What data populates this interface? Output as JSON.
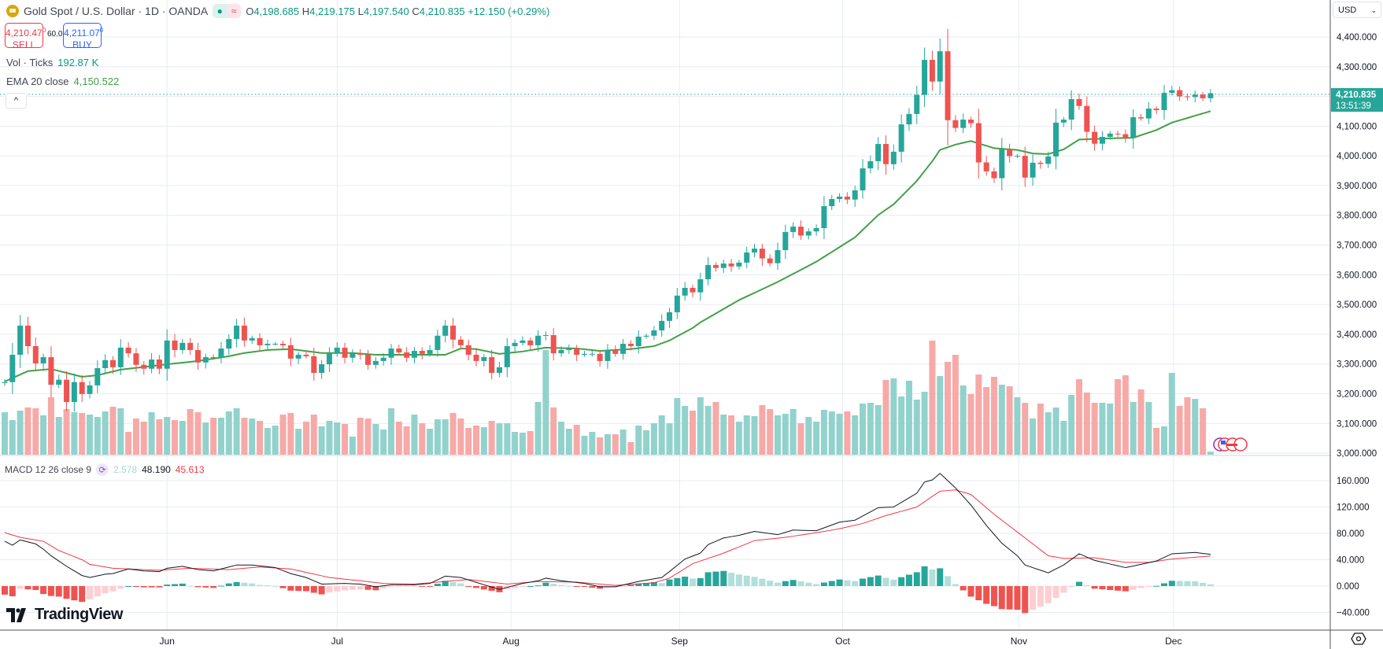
{
  "header": {
    "symbol_title": "Gold Spot / U.S. Dollar · 1D · OANDA",
    "ohlc": {
      "o_label": "O",
      "o": "4,198.685",
      "h_label": "H",
      "h": "4,219.175",
      "l_label": "L",
      "l": "4,197.540",
      "c_label": "C",
      "c": "4,210.835",
      "change": "+12.150 (+0.29%)"
    },
    "market_status_icon": "market-open-dot",
    "delay_icon": "approx-icon"
  },
  "trade": {
    "sell_price": "4,210.47",
    "sell_sup": "0",
    "sell_label": "SELL",
    "spread": "60.0",
    "buy_price": "4,211.07",
    "buy_sup": "0",
    "buy_label": "BUY"
  },
  "indicators": {
    "vol_label": "Vol · Ticks",
    "vol_value": "192.87 K",
    "ema_label": "EMA 20 close",
    "ema_value": "4,150.522",
    "collapse_icon": "chevron-up",
    "macd_label": "MACD 12 26 close 9",
    "macd_hist": "2.578",
    "macd_value": "48.190",
    "macd_signal": "45.613"
  },
  "right_axis": {
    "currency": "USD",
    "current_price": "4,210.835",
    "countdown": "13:51:39"
  },
  "branding": {
    "logo_text": "TradingView"
  },
  "colors": {
    "up": "#26a69a",
    "down": "#ef5350",
    "vol_up": "#92d2cc",
    "vol_down": "#f7a9a7",
    "ema": "#43a047",
    "macd": "#131722",
    "signal": "#f23645",
    "hist_up_strong": "#26a69a",
    "hist_up_weak": "#b2dfdb",
    "hist_down_strong": "#ef5350",
    "hist_down_weak": "#ffcdd2",
    "grid": "#e6ecf2"
  },
  "chart_data": {
    "type": "candlestick",
    "title": "Gold Spot / U.S. Dollar · 1D · OANDA",
    "price_ticks": [
      "4,400.000",
      "4,300.000",
      "4,100.000",
      "4,000.000",
      "3,900.000",
      "3,800.000",
      "3,700.000",
      "3,600.000",
      "3,500.000",
      "3,400.000",
      "3,300.000",
      "3,200.000",
      "3,100.000",
      "3,000.000"
    ],
    "price_tick_values": [
      4400,
      4300,
      4100,
      4000,
      3900,
      3800,
      3700,
      3600,
      3500,
      3400,
      3300,
      3200,
      3100,
      3000
    ],
    "ylim": [
      3000,
      4400
    ],
    "x_labels": [
      {
        "label": "Jun",
        "bar": 22
      },
      {
        "label": "Jul",
        "bar": 44
      },
      {
        "label": "Aug",
        "bar": 66.5
      },
      {
        "label": "Sep",
        "bar": 88.3
      },
      {
        "label": "Oct",
        "bar": 109.4
      },
      {
        "label": "Nov",
        "bar": 132.2
      },
      {
        "label": "Dec",
        "bar": 152.2
      }
    ],
    "first_open": 3236,
    "close": [
      3239,
      3331,
      3429,
      3360,
      3302,
      3323,
      3230,
      3247,
      3172,
      3239,
      3199,
      3228,
      3286,
      3313,
      3289,
      3355,
      3336,
      3297,
      3284,
      3315,
      3284,
      3379,
      3347,
      3371,
      3347,
      3305,
      3323,
      3321,
      3352,
      3384,
      3429,
      3379,
      3387,
      3363,
      3368,
      3368,
      3363,
      3318,
      3331,
      3326,
      3270,
      3299,
      3336,
      3355,
      3321,
      3336,
      3331,
      3297,
      3310,
      3321,
      3352,
      3339,
      3321,
      3344,
      3334,
      3347,
      3395,
      3429,
      3382,
      3363,
      3331,
      3310,
      3323,
      3270,
      3289,
      3360,
      3371,
      3379,
      3363,
      3395,
      3397,
      3336,
      3347,
      3352,
      3331,
      3334,
      3334,
      3310,
      3347,
      3334,
      3368,
      3360,
      3392,
      3395,
      3413,
      3445,
      3474,
      3530,
      3556,
      3541,
      3585,
      3633,
      3623,
      3638,
      3628,
      3641,
      3675,
      3688,
      3655,
      3639,
      3683,
      3744,
      3762,
      3732,
      3746,
      3757,
      3831,
      3855,
      3863,
      3853,
      3884,
      3958,
      3982,
      4040,
      3972,
      4014,
      4106,
      4141,
      4205,
      4323,
      4250,
      4352,
      4120,
      4094,
      4122,
      4110,
      3978,
      3948,
      3925,
      4022,
      3999,
      4000,
      3927,
      3977,
      3973,
      3998,
      4112,
      4122,
      4191,
      4168,
      4081,
      4041,
      4064,
      4075,
      4073,
      4060,
      4130,
      4126,
      4159,
      4154,
      4212,
      4221,
      4200,
      4198,
      4206,
      4194,
      4210.835
    ],
    "volume_k": [
      2700,
      2200,
      2800,
      3000,
      2950,
      2500,
      3650,
      2400,
      2900,
      2700,
      2650,
      2550,
      2400,
      2750,
      3050,
      2950,
      1450,
      2300,
      2100,
      2700,
      2250,
      2400,
      2200,
      2150,
      2900,
      2700,
      2050,
      2350,
      2350,
      2750,
      2950,
      2350,
      2300,
      2150,
      1700,
      1850,
      2550,
      2650,
      1650,
      2100,
      2550,
      1800,
      2150,
      2050,
      1950,
      1150,
      2350,
      2300,
      1950,
      1600,
      2950,
      2100,
      1800,
      2550,
      2000,
      1650,
      2250,
      2250,
      2650,
      2300,
      1700,
      1850,
      1750,
      2150,
      2000,
      2000,
      1450,
      1400,
      1500,
      3350,
      6650,
      3000,
      2100,
      1650,
      1900,
      1200,
      1450,
      1100,
      1300,
      1300,
      1600,
      800,
      1850,
      1550,
      2000,
      2500,
      2000,
      3600,
      3100,
      2800,
      3650,
      3100,
      3350,
      2550,
      2500,
      2100,
      2500,
      2450,
      3150,
      2900,
      2500,
      2600,
      2900,
      2000,
      2400,
      2100,
      2850,
      2750,
      2600,
      2750,
      2500,
      3250,
      3300,
      3150,
      4750,
      4850,
      3700,
      4700,
      3500,
      4000,
      7250,
      5000,
      5900,
      6350,
      4400,
      3850,
      5100,
      4300,
      4950,
      4450,
      4350,
      3650,
      3300,
      2300,
      3250,
      2700,
      3000,
      2150,
      3800,
      4800,
      3950,
      3300,
      3300,
      3250,
      4800,
      5050,
      3350,
      4150,
      3350,
      1700,
      1800,
      5200,
      3100,
      3650,
      3550,
      2950,
      192.87
    ],
    "ema20_samples": [
      [
        1,
        3241
      ],
      [
        4,
        3276
      ],
      [
        7,
        3283
      ],
      [
        11,
        3257
      ],
      [
        13,
        3262
      ],
      [
        16,
        3281
      ],
      [
        22,
        3299
      ],
      [
        26,
        3310
      ],
      [
        30,
        3326
      ],
      [
        32,
        3337
      ],
      [
        35,
        3347
      ],
      [
        38,
        3350
      ],
      [
        42,
        3337
      ],
      [
        46,
        3337
      ],
      [
        49,
        3331
      ],
      [
        58,
        3331
      ],
      [
        60,
        3352
      ],
      [
        62,
        3350
      ],
      [
        65,
        3334
      ],
      [
        68,
        3342
      ],
      [
        71,
        3355
      ],
      [
        75,
        3352
      ],
      [
        78,
        3344
      ],
      [
        82,
        3350
      ],
      [
        85,
        3360
      ],
      [
        87,
        3379
      ],
      [
        90,
        3421
      ],
      [
        91,
        3440
      ],
      [
        96,
        3515
      ],
      [
        101,
        3576
      ],
      [
        106,
        3644
      ],
      [
        111,
        3726
      ],
      [
        114,
        3801
      ],
      [
        116,
        3837
      ],
      [
        119,
        3916
      ],
      [
        121,
        3982
      ],
      [
        122,
        4020
      ],
      [
        124,
        4038
      ],
      [
        126,
        4050
      ],
      [
        129,
        4026
      ],
      [
        132,
        4020
      ],
      [
        134,
        4008
      ],
      [
        136,
        4006
      ],
      [
        138,
        4022
      ],
      [
        140,
        4055
      ],
      [
        144,
        4059
      ],
      [
        147,
        4061
      ],
      [
        150,
        4087
      ],
      [
        152,
        4112
      ],
      [
        157,
        4150.522
      ]
    ],
    "macd": {
      "ticks": [
        "160.000",
        "120.000",
        "80.000",
        "40.000",
        "0.000",
        "−40.000"
      ],
      "tick_values": [
        160,
        120,
        80,
        40,
        0,
        -40
      ],
      "line_samples": [
        [
          1,
          68
        ],
        [
          2,
          62
        ],
        [
          3,
          70
        ],
        [
          5,
          64
        ],
        [
          6,
          56
        ],
        [
          7,
          46
        ],
        [
          9,
          30
        ],
        [
          11,
          16
        ],
        [
          12,
          13
        ],
        [
          14,
          18
        ],
        [
          15,
          19
        ],
        [
          17,
          26
        ],
        [
          19,
          23
        ],
        [
          21,
          22
        ],
        [
          22,
          27
        ],
        [
          24,
          30
        ],
        [
          26,
          25
        ],
        [
          28,
          23
        ],
        [
          31,
          32
        ],
        [
          33,
          32
        ],
        [
          36,
          28
        ],
        [
          38,
          19
        ],
        [
          40,
          13
        ],
        [
          42,
          3
        ],
        [
          45,
          4
        ],
        [
          47,
          3
        ],
        [
          49,
          -1
        ],
        [
          51,
          2
        ],
        [
          54,
          2
        ],
        [
          56,
          4
        ],
        [
          58,
          15
        ],
        [
          60,
          13
        ],
        [
          63,
          2
        ],
        [
          65,
          -5
        ],
        [
          68,
          4
        ],
        [
          70,
          8
        ],
        [
          71,
          12
        ],
        [
          73,
          8
        ],
        [
          76,
          4
        ],
        [
          78,
          -1
        ],
        [
          80,
          -1
        ],
        [
          83,
          7
        ],
        [
          86,
          13
        ],
        [
          87,
          22
        ],
        [
          89,
          41
        ],
        [
          91,
          50
        ],
        [
          92,
          63
        ],
        [
          94,
          73
        ],
        [
          96,
          77
        ],
        [
          98,
          83
        ],
        [
          101,
          78
        ],
        [
          103,
          85
        ],
        [
          106,
          84
        ],
        [
          109,
          97
        ],
        [
          111,
          100
        ],
        [
          114,
          119
        ],
        [
          116,
          120
        ],
        [
          119,
          141
        ],
        [
          120,
          158
        ],
        [
          121,
          161
        ],
        [
          122,
          171
        ],
        [
          124,
          149
        ],
        [
          126,
          123
        ],
        [
          128,
          92
        ],
        [
          130,
          65
        ],
        [
          132,
          46
        ],
        [
          133,
          32
        ],
        [
          136,
          20
        ],
        [
          138,
          32
        ],
        [
          140,
          49
        ],
        [
          142,
          39
        ],
        [
          146,
          28
        ],
        [
          148,
          33
        ],
        [
          150,
          38
        ],
        [
          152,
          49
        ],
        [
          155,
          51
        ],
        [
          157,
          48.19
        ]
      ],
      "signal_samples": [
        [
          1,
          81
        ],
        [
          3,
          74
        ],
        [
          6,
          68
        ],
        [
          8,
          54
        ],
        [
          11,
          40
        ],
        [
          12,
          33
        ],
        [
          15,
          27
        ],
        [
          21,
          24
        ],
        [
          25,
          27
        ],
        [
          30,
          25
        ],
        [
          34,
          29
        ],
        [
          38,
          26
        ],
        [
          43,
          13
        ],
        [
          47,
          8
        ],
        [
          50,
          4
        ],
        [
          54,
          3
        ],
        [
          61,
          10
        ],
        [
          66,
          3
        ],
        [
          70,
          7
        ],
        [
          75,
          6
        ],
        [
          80,
          1
        ],
        [
          85,
          5
        ],
        [
          87,
          12
        ],
        [
          90,
          34
        ],
        [
          94,
          50
        ],
        [
          98,
          69
        ],
        [
          102,
          74
        ],
        [
          106,
          81
        ],
        [
          109,
          87
        ],
        [
          112,
          95
        ],
        [
          115,
          107
        ],
        [
          119,
          120
        ],
        [
          122,
          144
        ],
        [
          124,
          146
        ],
        [
          126,
          139
        ],
        [
          129,
          109
        ],
        [
          132,
          82
        ],
        [
          136,
          46
        ],
        [
          138,
          42
        ],
        [
          142,
          43
        ],
        [
          146,
          36
        ],
        [
          149,
          36
        ],
        [
          152,
          41
        ],
        [
          157,
          45.613
        ]
      ]
    }
  }
}
